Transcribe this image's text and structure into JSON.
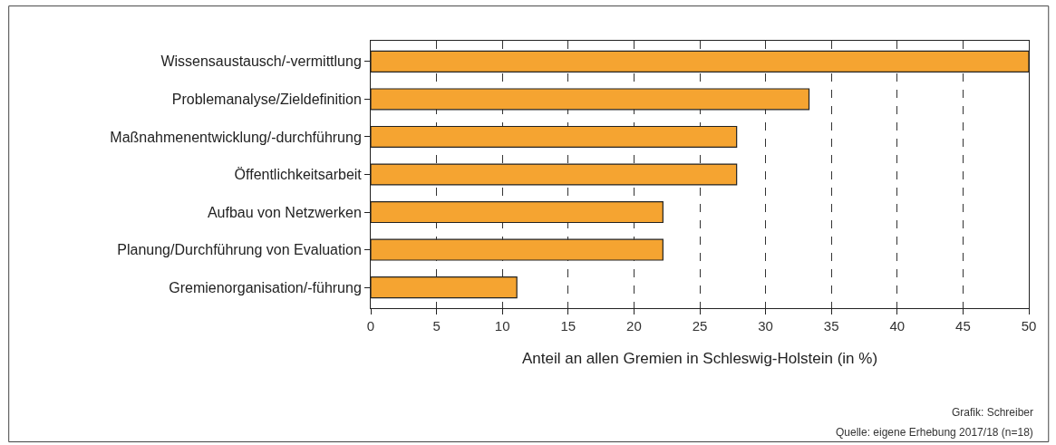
{
  "chart_data": {
    "type": "bar",
    "orientation": "horizontal",
    "categories": [
      "Wissensaustausch/-vermittlung",
      "Problemanalyse/Zieldefinition",
      "Maßnahmenentwicklung/-durchführung",
      "Öffentlichkeitsarbeit",
      "Aufbau von Netzwerken",
      "Planung/Durchführung von Evaluation",
      "Gremienorganisation/-führung"
    ],
    "values": [
      50,
      33.3,
      27.8,
      27.8,
      22.2,
      22.2,
      11.1
    ],
    "color": "#f5a431",
    "xlim": [
      0,
      50
    ],
    "xticks": [
      0,
      5,
      10,
      15,
      20,
      25,
      30,
      35,
      40,
      45,
      50
    ],
    "xlabel": "Anteil an allen Gremien in Schleswig-Holstein (in %)",
    "grid": "x",
    "annotations": [
      "Grafik: Schreiber",
      "Quelle: eigene Erhebung 2017/18 (n=18)"
    ]
  }
}
